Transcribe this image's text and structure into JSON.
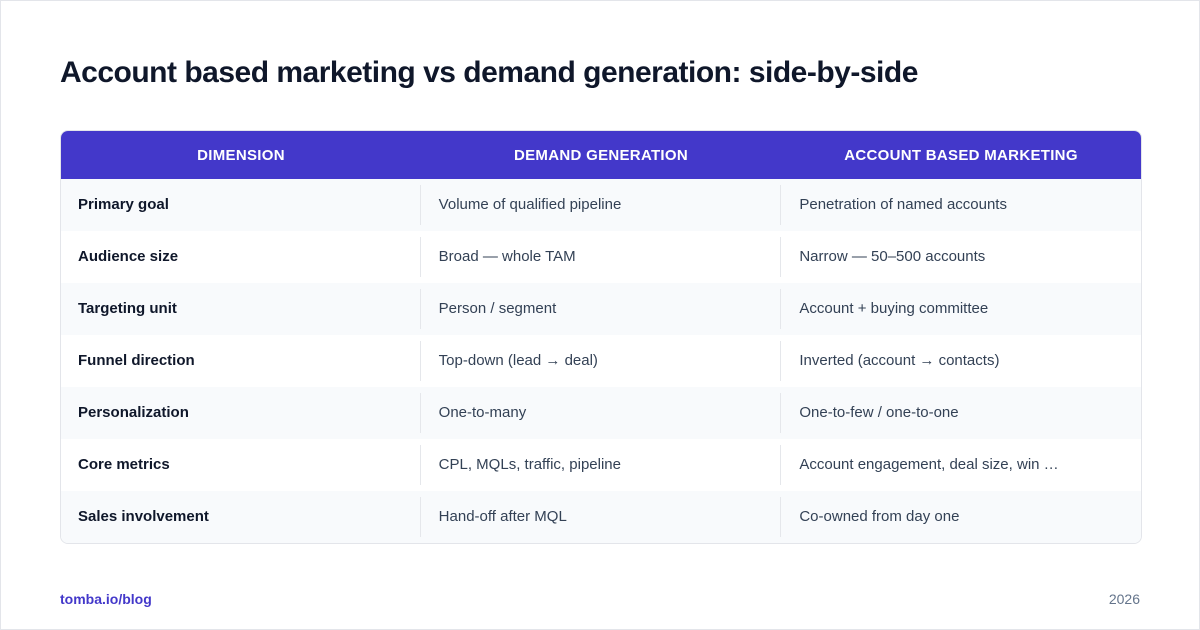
{
  "title": "Account based marketing vs demand generation: side-by-side",
  "table": {
    "header": [
      "DIMENSION",
      "DEMAND GENERATION",
      "ACCOUNT BASED MARKETING"
    ],
    "rows": [
      [
        "Primary goal",
        "Volume of qualified pipeline",
        "Penetration of named accounts"
      ],
      [
        "Audience size",
        "Broad — whole TAM",
        "Narrow — 50–500 accounts"
      ],
      [
        "Targeting unit",
        "Person / segment",
        "Account + buying committee"
      ],
      [
        "Funnel direction",
        "Top-down (lead → deal)",
        "Inverted (account → contacts)"
      ],
      [
        "Personalization",
        "One-to-many",
        "One-to-few / one-to-one"
      ],
      [
        "Core metrics",
        "CPL, MQLs, traffic, pipeline",
        "Account engagement, deal size, win …"
      ],
      [
        "Sales involvement",
        "Hand-off after MQL",
        "Co-owned from day one"
      ]
    ]
  },
  "footer": {
    "source": "tomba.io/blog",
    "year": "2026"
  }
}
